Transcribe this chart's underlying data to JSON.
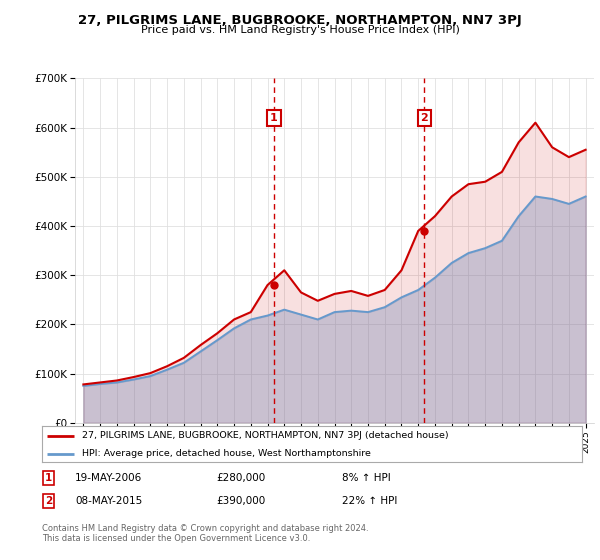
{
  "title": "27, PILGRIMS LANE, BUGBROOKE, NORTHAMPTON, NN7 3PJ",
  "subtitle": "Price paid vs. HM Land Registry's House Price Index (HPI)",
  "years": [
    1995,
    1996,
    1997,
    1998,
    1999,
    2000,
    2001,
    2002,
    2003,
    2004,
    2005,
    2006,
    2007,
    2008,
    2009,
    2010,
    2011,
    2012,
    2013,
    2014,
    2015,
    2016,
    2017,
    2018,
    2019,
    2020,
    2021,
    2022,
    2023,
    2024,
    2025
  ],
  "hpi_values": [
    75000,
    79000,
    82000,
    88000,
    95000,
    108000,
    122000,
    145000,
    168000,
    192000,
    210000,
    218000,
    230000,
    220000,
    210000,
    225000,
    228000,
    225000,
    235000,
    255000,
    270000,
    295000,
    325000,
    345000,
    355000,
    370000,
    420000,
    460000,
    455000,
    445000,
    460000
  ],
  "property_values": [
    78000,
    82000,
    86000,
    93000,
    101000,
    115000,
    132000,
    158000,
    182000,
    210000,
    225000,
    280000,
    310000,
    265000,
    248000,
    262000,
    268000,
    258000,
    270000,
    310000,
    390000,
    420000,
    460000,
    485000,
    490000,
    510000,
    570000,
    610000,
    560000,
    540000,
    555000
  ],
  "sale1_year": 2006.38,
  "sale1_value": 280000,
  "sale1_label": "1",
  "sale1_date": "19-MAY-2006",
  "sale1_price": "£280,000",
  "sale1_hpi": "8% ↑ HPI",
  "sale2_year": 2015.36,
  "sale2_value": 390000,
  "sale2_label": "2",
  "sale2_date": "08-MAY-2015",
  "sale2_price": "£390,000",
  "sale2_hpi": "22% ↑ HPI",
  "hpi_line_color": "#6699cc",
  "property_line_color": "#cc0000",
  "sale_vline_color": "#cc0000",
  "ylim": [
    0,
    700000
  ],
  "yticks": [
    0,
    100000,
    200000,
    300000,
    400000,
    500000,
    600000,
    700000
  ],
  "xlabel_years": [
    1995,
    1996,
    1997,
    1998,
    1999,
    2000,
    2001,
    2002,
    2003,
    2004,
    2005,
    2006,
    2007,
    2008,
    2009,
    2010,
    2011,
    2012,
    2013,
    2014,
    2015,
    2016,
    2017,
    2018,
    2019,
    2020,
    2021,
    2022,
    2023,
    2024,
    2025
  ],
  "legend_property_label": "27, PILGRIMS LANE, BUGBROOKE, NORTHAMPTON, NN7 3PJ (detached house)",
  "legend_hpi_label": "HPI: Average price, detached house, West Northamptonshire",
  "footnote": "Contains HM Land Registry data © Crown copyright and database right 2024.\nThis data is licensed under the Open Government Licence v3.0.",
  "bg_color": "#ffffff",
  "plot_bg_color": "#ffffff",
  "grid_color": "#e0e0e0"
}
